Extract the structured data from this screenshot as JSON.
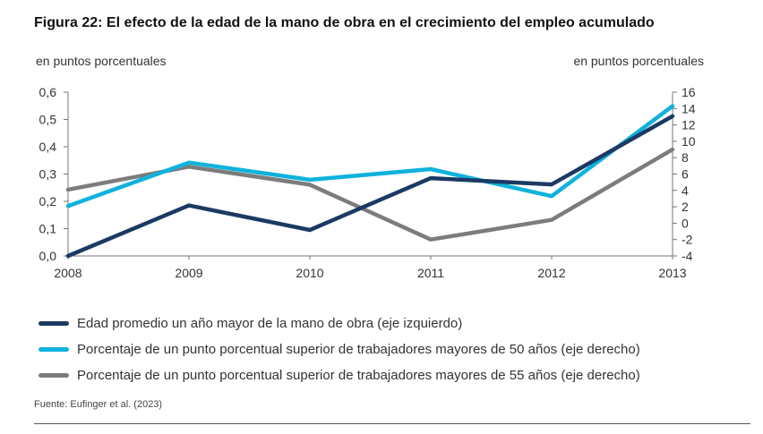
{
  "header": {
    "title": "Figura 22: El efecto de la edad de la mano de obra en el crecimiento del empleo acumulado",
    "unit_left": "en puntos porcentuales",
    "unit_right": "en puntos porcentuales"
  },
  "chart_data": {
    "type": "line",
    "x": [
      "2008",
      "2009",
      "2010",
      "2011",
      "2012",
      "2013"
    ],
    "left_axis": {
      "ylim": [
        0,
        0.6
      ],
      "ticks": [
        0,
        0.1,
        0.2,
        0.3,
        0.4,
        0.5,
        0.6
      ],
      "tick_labels": [
        "0,0",
        "0,1",
        "0,2",
        "0,3",
        "0,4",
        "0,5",
        "0,6"
      ]
    },
    "right_axis": {
      "ylim": [
        -4,
        16
      ],
      "ticks": [
        -4,
        -2,
        0,
        2,
        4,
        6,
        8,
        10,
        12,
        14,
        16
      ],
      "tick_labels": [
        "-4",
        "-2",
        "0",
        "2",
        "4",
        "6",
        "8",
        "10",
        "12",
        "14",
        "16"
      ]
    },
    "grid": false,
    "legend_placement": "bottom",
    "series": [
      {
        "name": "Edad promedio un año mayor de la mano de obra (eje izquierdo)",
        "axis": "left",
        "color": "#1b3a63",
        "values": [
          0.0,
          0.185,
          0.095,
          0.285,
          0.262,
          0.512
        ]
      },
      {
        "name": "Porcentaje de un punto porcentual superior de trabajadores mayores de 50 años (eje derecho)",
        "axis": "right",
        "color": "#0fb2dc",
        "values": [
          2.1,
          7.4,
          5.3,
          6.6,
          3.3,
          14.3
        ]
      },
      {
        "name": "Porcentaje de un punto porcentual superior de trabajadores mayores de 55 años (eje derecho)",
        "axis": "right",
        "color": "#7c7c7c",
        "values": [
          4.1,
          6.9,
          4.7,
          -2.0,
          0.4,
          9.0
        ]
      }
    ]
  },
  "footer": {
    "source": "Fuente: Eufinger et al. (2023)"
  }
}
